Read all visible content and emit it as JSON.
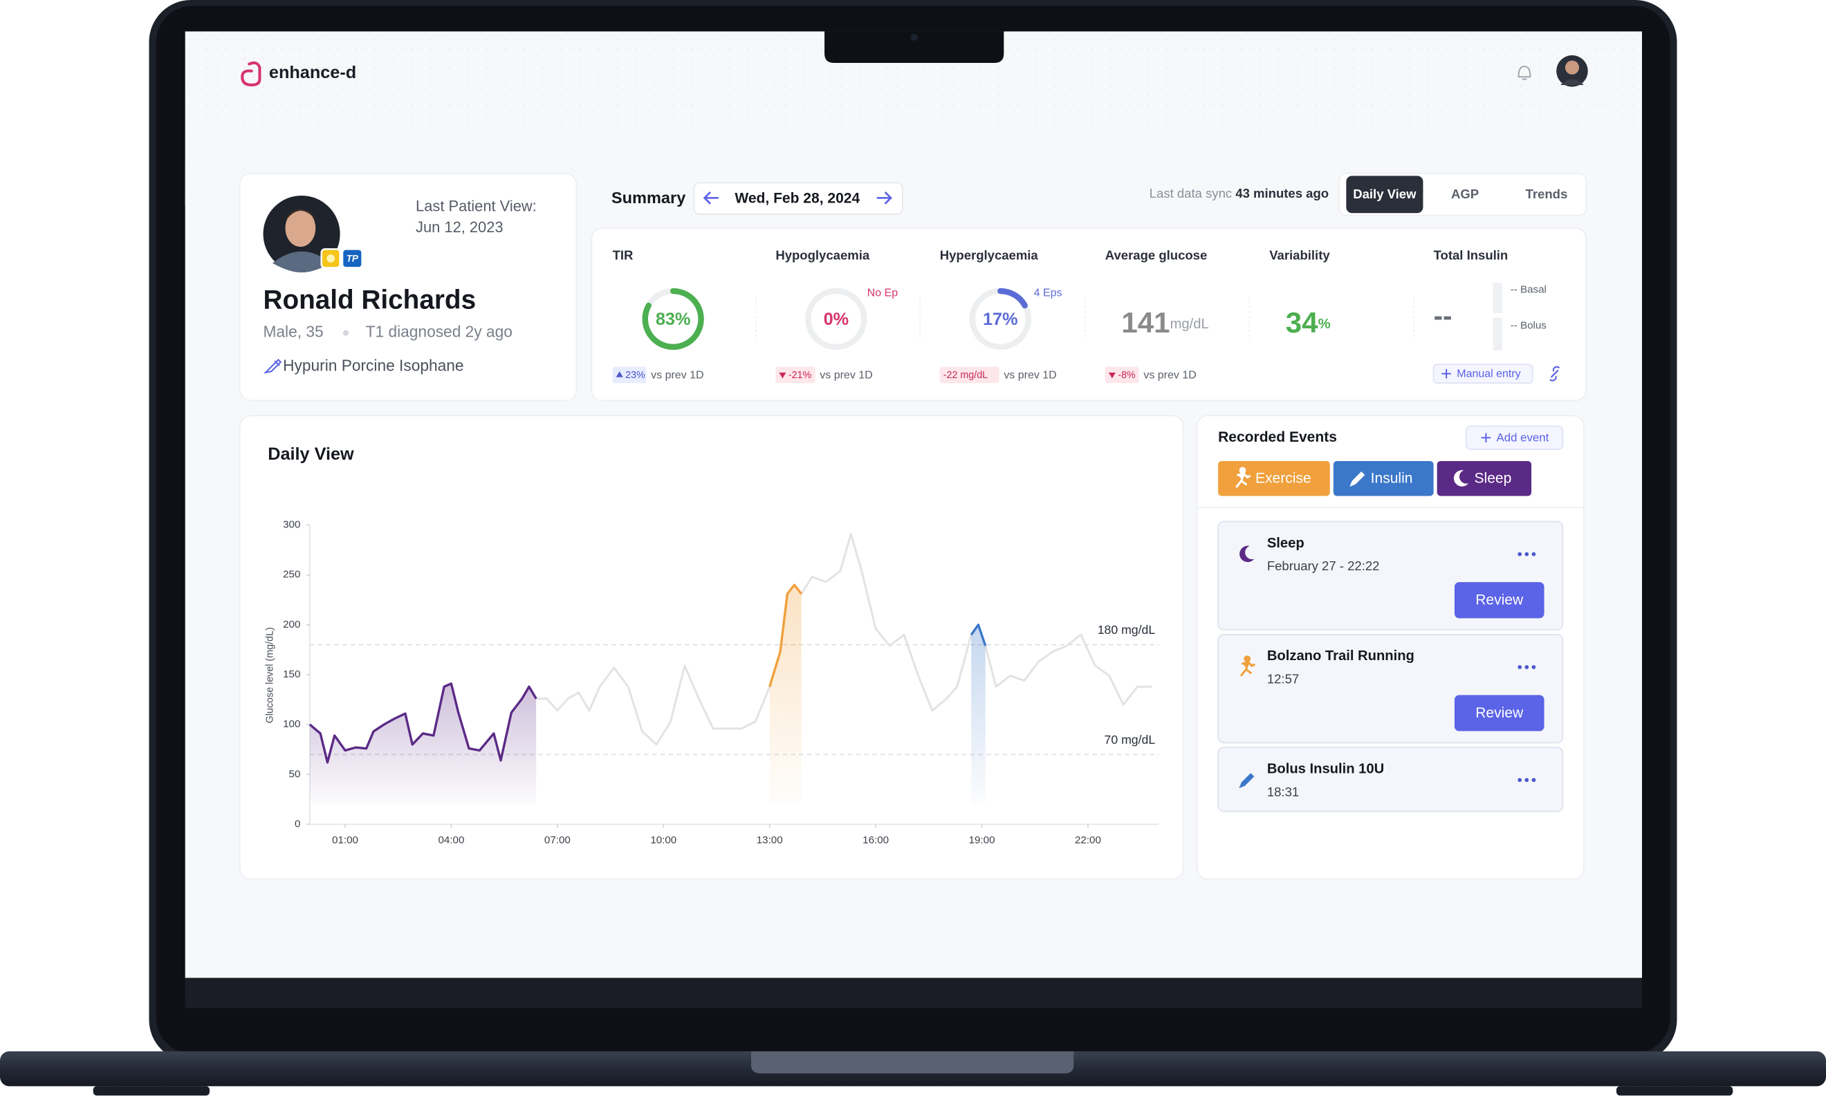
{
  "app": {
    "name": "enhance-d"
  },
  "patient": {
    "last_view_label": "Last Patient View:",
    "last_view_date": "Jun 12, 2023",
    "name": "Ronald Richards",
    "sex_age": "Male, 35",
    "diagnosis": "T1 diagnosed 2y ago",
    "medication": "Hypurin Porcine Isophane",
    "badge": "TP"
  },
  "summary": {
    "title": "Summary",
    "date": "Wed, Feb 28, 2024",
    "sync_label": "Last data sync",
    "sync_time": "43 minutes ago",
    "tabs": [
      "Daily View",
      "AGP",
      "Trends"
    ],
    "active_tab": 0
  },
  "metrics": [
    {
      "label": "TIR",
      "value": 83,
      "value_label": "83%",
      "color": "#4caf50",
      "change": "23%",
      "change_dir": "up",
      "comparison": "vs prev 1D"
    },
    {
      "label": "Hypoglycaemia",
      "value": 0,
      "value_label": "0%",
      "color": "#d6336c",
      "note": "No Ep",
      "change": "-21%",
      "change_dir": "down",
      "comparison": "vs prev 1D"
    },
    {
      "label": "Hyperglycaemia",
      "value": 17,
      "value_label": "17%",
      "color": "#5b6bd6",
      "note": "4 Eps",
      "change": "-22 mg/dL",
      "change_dir": "none",
      "comparison": "vs prev 1D"
    },
    {
      "label": "Average glucose",
      "value": 141,
      "unit": "mg/dL",
      "color": "#8a8a8a",
      "change": "-8%",
      "change_dir": "down",
      "comparison": "vs prev 1D"
    },
    {
      "label": "Variability",
      "value": 34,
      "unit": "%",
      "color": "#4caf50"
    },
    {
      "label": "Total Insulin",
      "value_label": "--",
      "basal": "-- Basal",
      "bolus": "-- Bolus",
      "action": "Manual entry"
    }
  ],
  "daily_view": {
    "type": "line",
    "title": "Daily View",
    "y_label": "Glucose level (mg/dL)",
    "color": "#e3e3e3",
    "x": [
      0,
      0.3,
      0.5,
      0.7,
      1.0,
      1.3,
      1.6,
      1.8,
      2.1,
      2.4,
      2.7,
      2.9,
      3.2,
      3.5,
      3.8,
      4.0,
      4.2,
      4.5,
      4.8,
      5.2,
      5.4,
      5.7,
      6.0,
      6.2,
      6.4,
      6.7,
      7.0,
      7.3,
      7.6,
      7.9,
      8.2,
      8.6,
      9.0,
      9.4,
      9.8,
      10.2,
      10.6,
      11.0,
      11.4,
      11.8,
      12.2,
      12.6,
      13.0,
      13.3,
      13.5,
      13.7,
      13.9,
      14.2,
      14.6,
      15.0,
      15.3,
      15.6,
      16.0,
      16.4,
      16.8,
      17.2,
      17.6,
      18.0,
      18.3,
      18.7,
      18.9,
      19.1,
      19.4,
      19.8,
      20.2,
      20.6,
      21.0,
      21.4,
      21.8,
      22.2,
      22.6,
      23.0,
      23.4,
      23.8
    ],
    "values": [
      100,
      91,
      62,
      89,
      74,
      77,
      76,
      93,
      100,
      106,
      111,
      80,
      91,
      89,
      138,
      141,
      112,
      76,
      74,
      91,
      64,
      112,
      126,
      138,
      126,
      126,
      114,
      126,
      132,
      114,
      138,
      157,
      138,
      93,
      80,
      103,
      159,
      126,
      96,
      96,
      96,
      103,
      138,
      173,
      231,
      240,
      231,
      248,
      243,
      254,
      291,
      254,
      196,
      179,
      190,
      149,
      114,
      126,
      138,
      190,
      200,
      179,
      138,
      149,
      144,
      163,
      173,
      179,
      190,
      159,
      149,
      120,
      138,
      138
    ],
    "xlim": [
      0,
      24
    ],
    "xticks": [
      {
        "value": 1,
        "label": "01:00"
      },
      {
        "value": 4,
        "label": "04:00"
      },
      {
        "value": 7,
        "label": "07:00"
      },
      {
        "value": 10,
        "label": "10:00"
      },
      {
        "value": 13,
        "label": "13:00"
      },
      {
        "value": 16,
        "label": "16:00"
      },
      {
        "value": 19,
        "label": "19:00"
      },
      {
        "value": 22,
        "label": "22:00"
      }
    ],
    "ylim": [
      0,
      300
    ],
    "yticks": [
      0,
      50,
      100,
      150,
      200,
      250,
      300
    ],
    "reference_lines": [
      {
        "value": 180,
        "label": "180 mg/dL"
      },
      {
        "value": 70,
        "label": "70 mg/dL"
      }
    ],
    "highlights": [
      {
        "start": 0,
        "end": 6.4,
        "color": "#5b2a86"
      },
      {
        "start": 13.0,
        "end": 13.9,
        "color": "#f0a03c"
      },
      {
        "start": 18.7,
        "end": 19.1,
        "color": "#3b78c9"
      }
    ]
  },
  "events": {
    "title": "Recorded Events",
    "add": "Add event",
    "filters": [
      {
        "label": "Exercise",
        "color": "#f0a03c"
      },
      {
        "label": "Insulin",
        "color": "#3b78c9"
      },
      {
        "label": "Sleep",
        "color": "#5b2a86"
      }
    ],
    "items": [
      {
        "kind": "sleep",
        "title": "Sleep",
        "time": "February 27 - 22:22",
        "action": "Review"
      },
      {
        "kind": "exercise",
        "title": "Bolzano Trail Running",
        "time": "12:57",
        "action": "Review"
      },
      {
        "kind": "insulin",
        "title": "Bolus Insulin 10U",
        "time": "18:31"
      }
    ]
  }
}
